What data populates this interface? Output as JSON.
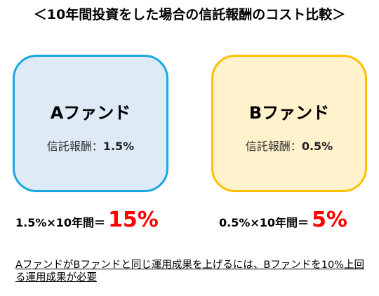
{
  "title": "＜10年間投資をした場合の信託報酬のコスト比較＞",
  "funds": [
    {
      "name": "Aファンド",
      "fee_label": "信託報酬：",
      "fee_value": "1.5%",
      "formula": "1.5%×10年間＝",
      "result": "15%",
      "color_bg": "#deebf7",
      "color_border": "#1aa7e2"
    },
    {
      "name": "Bファンド",
      "fee_label": "信託報酬：",
      "fee_value": "0.5%",
      "formula": "0.5%×10年間＝",
      "result": "5%",
      "color_bg": "#fff2cc",
      "color_border": "#ffc000"
    }
  ],
  "result_color": "#ff0000",
  "note": "AファンドがBファンドと同じ運用成果を上げるには、Bファンドを10%上回る運用成果が必要"
}
